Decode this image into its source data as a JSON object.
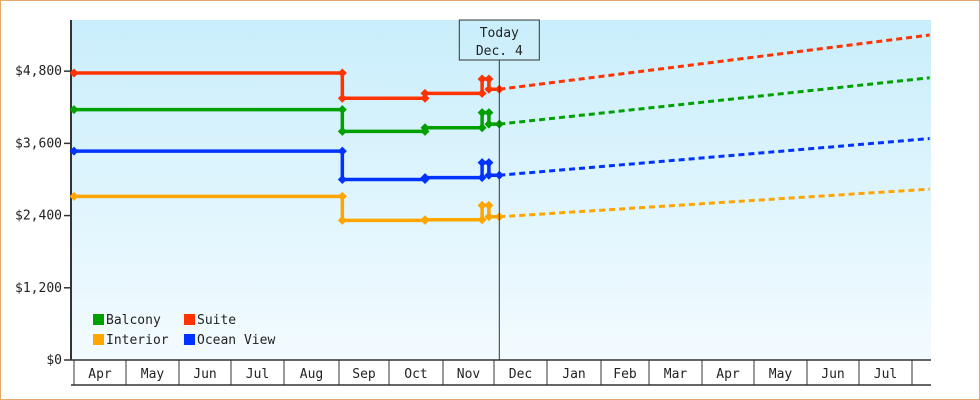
{
  "chart_data": {
    "type": "line",
    "title": "",
    "xlabel": "",
    "ylabel": "",
    "ylim": [
      0,
      5650
    ],
    "yticks": [
      0,
      1200,
      2400,
      3600,
      4800
    ],
    "ytick_labels": [
      "$0",
      "$1,200",
      "$2,400",
      "$3,600",
      "$4,800"
    ],
    "xtick_labels": [
      "Apr",
      "May",
      "Jun",
      "Jul",
      "Aug",
      "Sep",
      "Oct",
      "Nov",
      "Dec",
      "Jan",
      "Feb",
      "Mar",
      "Apr",
      "May",
      "Jun",
      "Jul"
    ],
    "grid": false,
    "legend_position": "bottom-left",
    "today_marker": {
      "line1": "Today",
      "line2": "Dec. 4",
      "date": "Dec 4"
    },
    "series": [
      {
        "name": "Balcony",
        "color": "#00a000",
        "history": [
          [
            "Apr 1",
            4160
          ],
          [
            "Sep 3",
            4160
          ],
          [
            "Sep 3",
            3800
          ],
          [
            "Oct 21",
            3800
          ],
          [
            "Oct 21",
            3860
          ],
          [
            "Nov 24",
            3860
          ],
          [
            "Nov 24",
            4110
          ],
          [
            "Nov 28",
            4110
          ],
          [
            "Nov 28",
            3920
          ],
          [
            "Dec 4",
            3920
          ]
        ],
        "forecast": [
          [
            "Dec 4",
            3920
          ],
          [
            "Aug 11",
            4690
          ]
        ]
      },
      {
        "name": "Suite",
        "color": "#ff3300",
        "history": [
          [
            "Apr 1",
            4770
          ],
          [
            "Sep 3",
            4770
          ],
          [
            "Sep 3",
            4350
          ],
          [
            "Oct 21",
            4350
          ],
          [
            "Oct 21",
            4430
          ],
          [
            "Nov 24",
            4430
          ],
          [
            "Nov 24",
            4670
          ],
          [
            "Nov 28",
            4670
          ],
          [
            "Nov 28",
            4500
          ],
          [
            "Dec 4",
            4500
          ]
        ],
        "forecast": [
          [
            "Dec 4",
            4500
          ],
          [
            "Aug 11",
            5400
          ]
        ]
      },
      {
        "name": "Interior",
        "color": "#ffa500",
        "history": [
          [
            "Apr 1",
            2720
          ],
          [
            "Sep 3",
            2720
          ],
          [
            "Sep 3",
            2320
          ],
          [
            "Oct 21",
            2320
          ],
          [
            "Oct 21",
            2330
          ],
          [
            "Nov 24",
            2330
          ],
          [
            "Nov 24",
            2570
          ],
          [
            "Nov 28",
            2570
          ],
          [
            "Nov 28",
            2380
          ],
          [
            "Dec 4",
            2380
          ]
        ],
        "forecast": [
          [
            "Dec 4",
            2380
          ],
          [
            "Aug 11",
            2840
          ]
        ]
      },
      {
        "name": "Ocean View",
        "color": "#0033ff",
        "history": [
          [
            "Apr 1",
            3470
          ],
          [
            "Sep 3",
            3470
          ],
          [
            "Sep 3",
            3000
          ],
          [
            "Oct 21",
            3000
          ],
          [
            "Oct 21",
            3030
          ],
          [
            "Nov 24",
            3030
          ],
          [
            "Nov 24",
            3280
          ],
          [
            "Nov 28",
            3280
          ],
          [
            "Nov 28",
            3070
          ],
          [
            "Dec 4",
            3070
          ]
        ],
        "forecast": [
          [
            "Dec 4",
            3070
          ],
          [
            "Aug 11",
            3680
          ]
        ]
      }
    ]
  }
}
